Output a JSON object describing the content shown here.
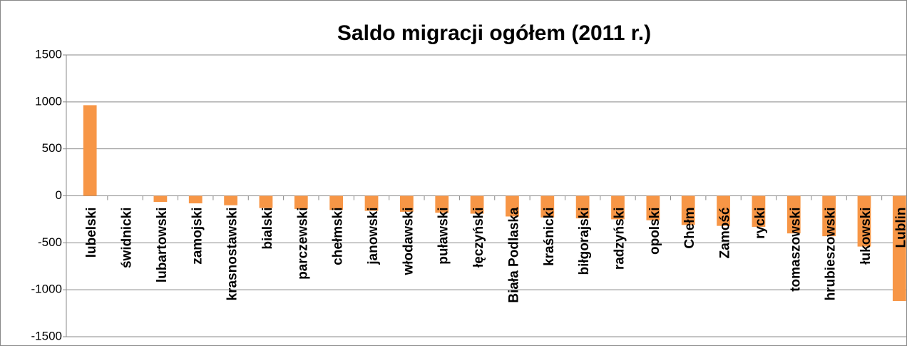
{
  "chart_data": {
    "type": "bar",
    "title": "Saldo migracji ogółem (2011 r.)",
    "categories": [
      "lubelski",
      "świdnicki",
      "lubartowski",
      "zamojski",
      "krasnostawski",
      "bialski",
      "parczewski",
      "chełmski",
      "janowski",
      "włodawski",
      "puławski",
      "łęczyński",
      "Biała Podlaska",
      "kraśnicki",
      "biłgorajski",
      "radzyński",
      "opolski",
      "Chełm",
      "Zamość",
      "rycki",
      "tomaszowski",
      "hrubieszowski",
      "łukowski",
      "Lublin"
    ],
    "values": [
      965,
      0,
      -65,
      -80,
      -100,
      -130,
      -140,
      -150,
      -160,
      -170,
      -180,
      -190,
      -220,
      -230,
      -240,
      -250,
      -260,
      -310,
      -320,
      -330,
      -400,
      -430,
      -540,
      -1120
    ],
    "color": "#f79646",
    "ylim": [
      -1500,
      1500
    ],
    "yticks": [
      -1500,
      -1000,
      -500,
      0,
      500,
      1000,
      1500
    ],
    "grid": true
  }
}
